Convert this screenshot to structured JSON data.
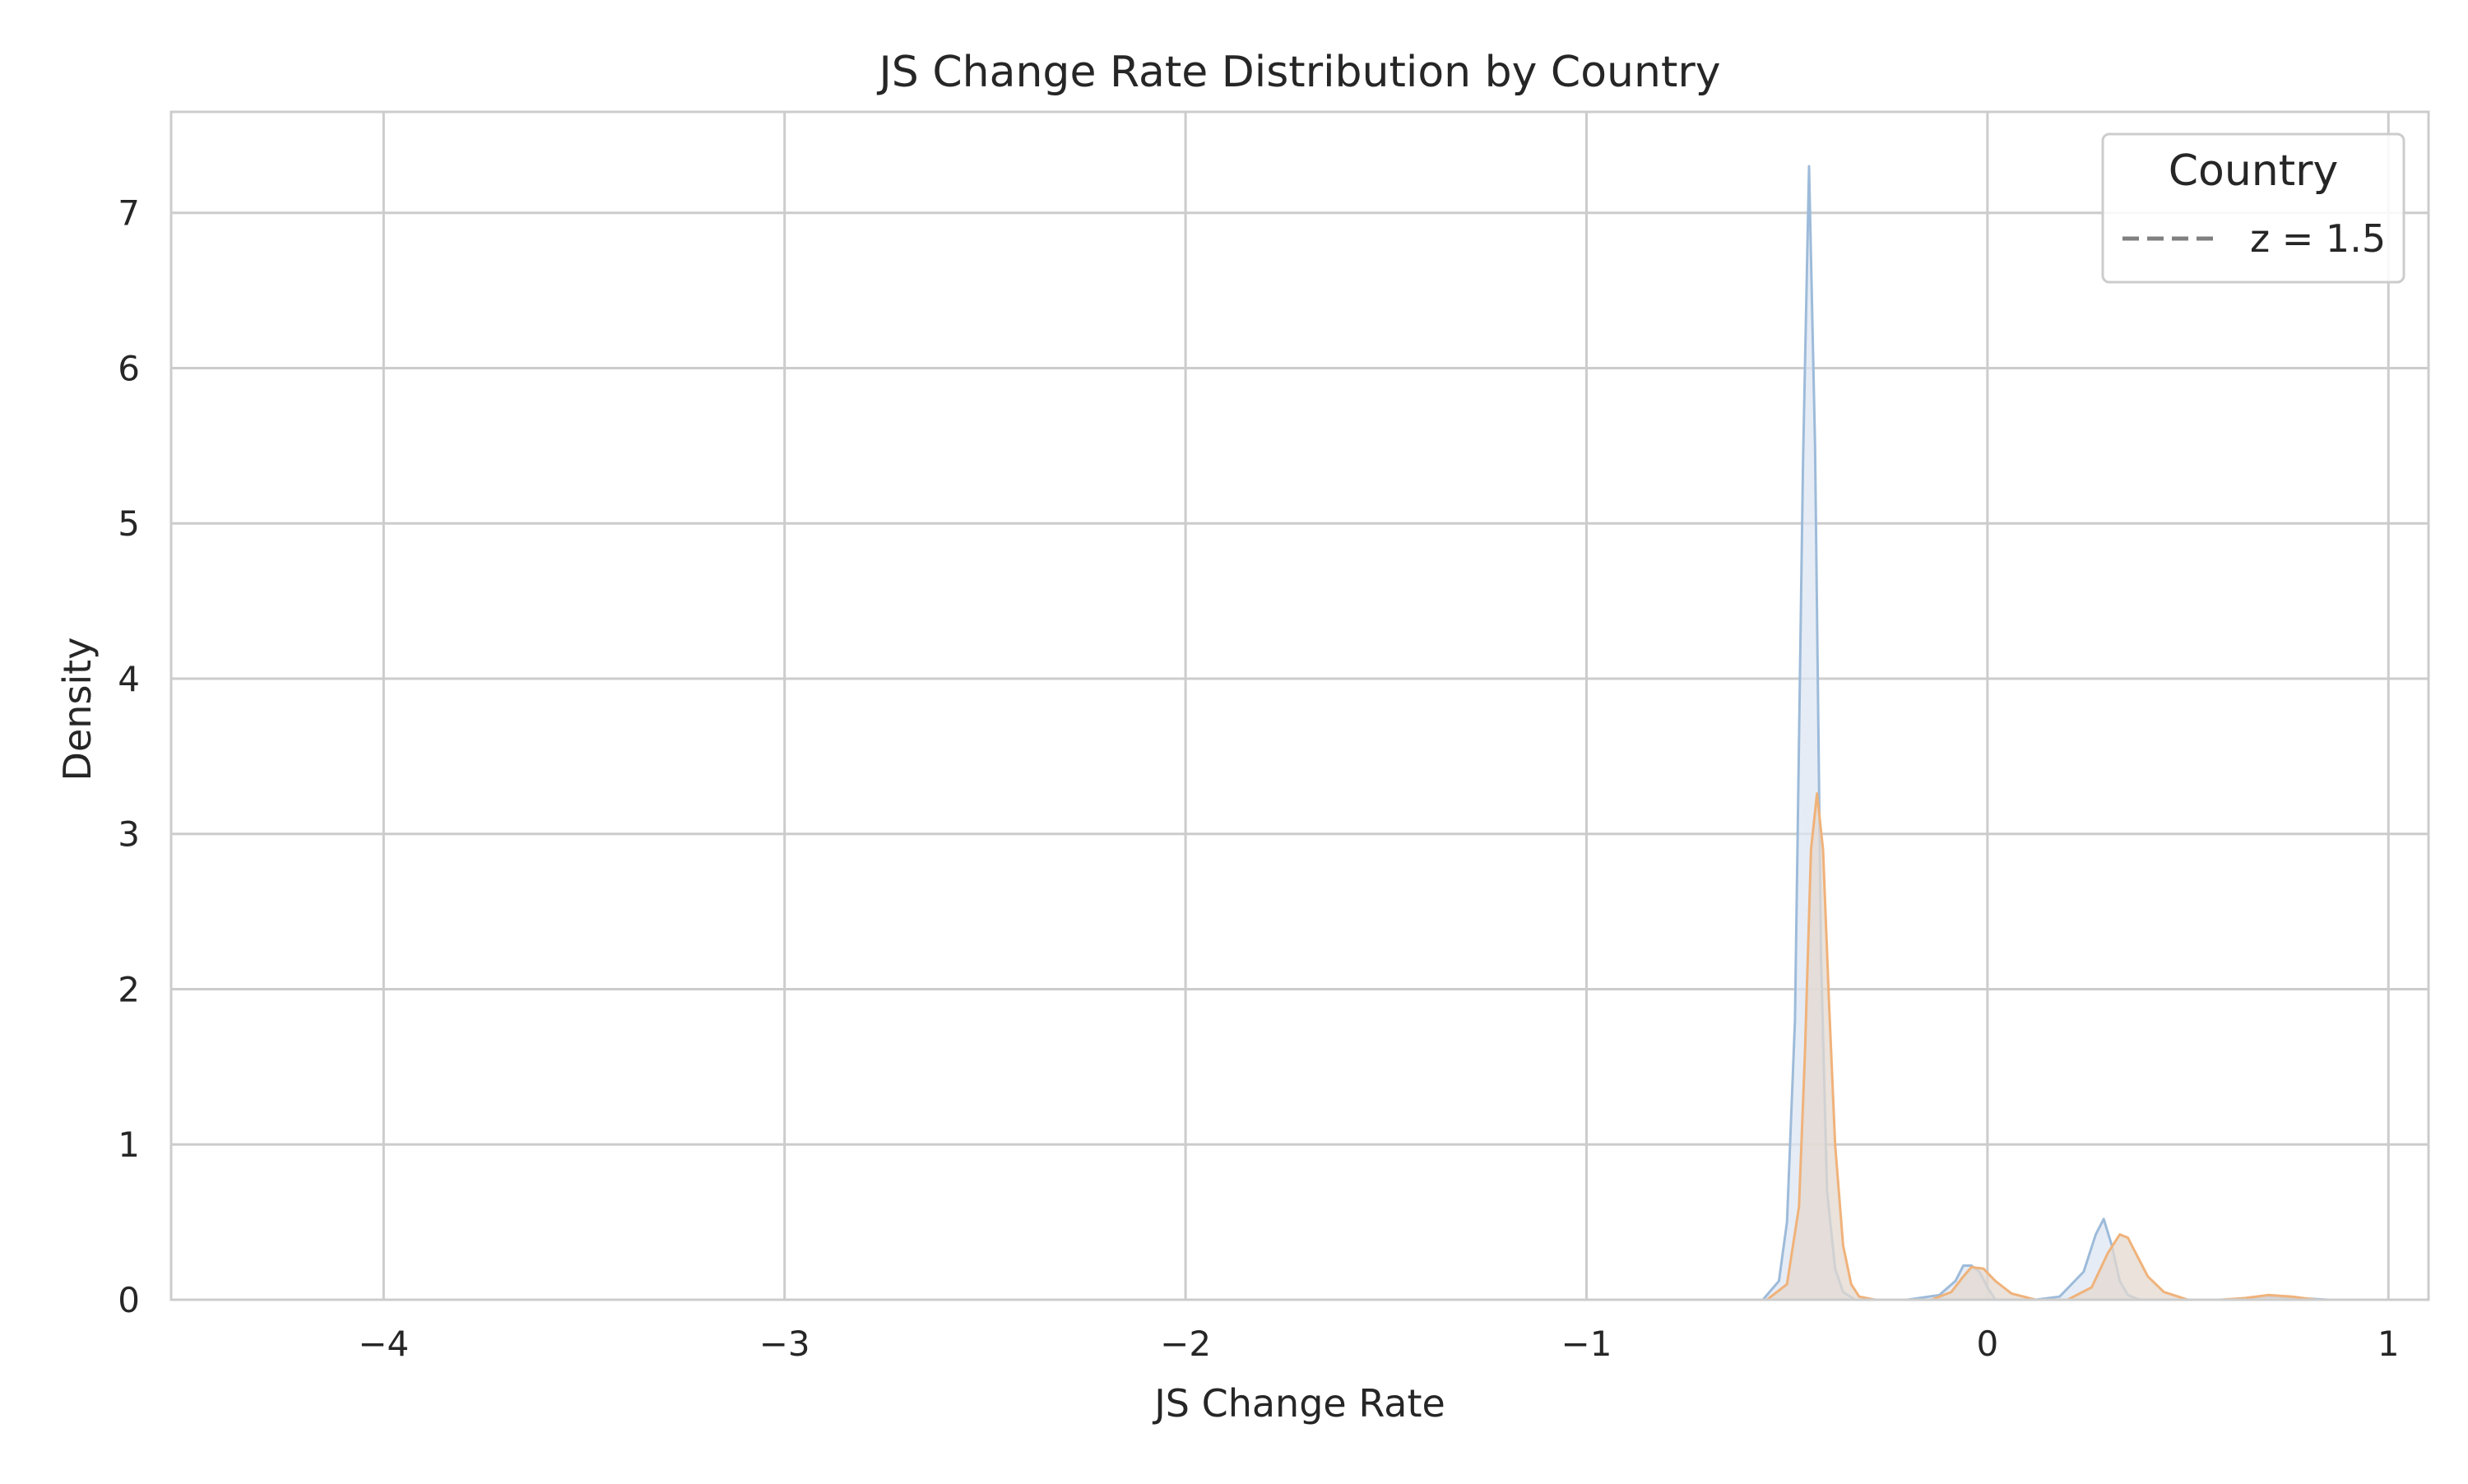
{
  "chart_data": {
    "type": "area",
    "title": "JS Change Rate Distribution by Country",
    "xlabel": "JS Change Rate",
    "ylabel": "Density",
    "xlim": [
      -4.53,
      1.1
    ],
    "ylim": [
      0,
      7.65
    ],
    "xticks": [
      -4,
      -3,
      -2,
      -1,
      0,
      1
    ],
    "xtick_labels": [
      "−4",
      "−3",
      "−2",
      "−1",
      "0",
      "1"
    ],
    "yticks": [
      0,
      1,
      2,
      3,
      4,
      5,
      6,
      7
    ],
    "ytick_labels": [
      "0",
      "1",
      "2",
      "3",
      "4",
      "5",
      "6",
      "7"
    ],
    "grid": true,
    "legend": {
      "title": "Country",
      "position": "top-right",
      "entries": [
        {
          "label": "z = 1.5",
          "style": "dashed",
          "color": "#808080"
        }
      ]
    },
    "series": [
      {
        "name": "series-1",
        "color": "#9dbbda",
        "fill": "#dde6f1",
        "x": [
          -0.56,
          -0.52,
          -0.5,
          -0.48,
          -0.46,
          -0.445,
          -0.43,
          -0.415,
          -0.4,
          -0.38,
          -0.36,
          -0.33,
          -0.2,
          -0.12,
          -0.08,
          -0.06,
          -0.04,
          -0.02,
          0.0,
          0.02,
          0.12,
          0.18,
          0.24,
          0.27,
          0.29,
          0.31,
          0.33,
          0.35,
          0.38,
          0.42,
          0.6,
          0.68,
          0.72,
          0.78,
          0.85
        ],
        "y": [
          0,
          0.12,
          0.5,
          1.8,
          5.4,
          7.3,
          5.5,
          2.2,
          0.7,
          0.2,
          0.05,
          0.0,
          0.0,
          0.03,
          0.12,
          0.22,
          0.22,
          0.18,
          0.08,
          0.0,
          0.0,
          0.02,
          0.18,
          0.42,
          0.52,
          0.35,
          0.12,
          0.03,
          0.0,
          0.0,
          0.0,
          0.02,
          0.02,
          0.01,
          0.0
        ]
      },
      {
        "name": "series-2",
        "color": "#f0b27a",
        "fill": "#e3d8cf",
        "x": [
          -0.55,
          -0.5,
          -0.47,
          -0.455,
          -0.44,
          -0.425,
          -0.41,
          -0.395,
          -0.38,
          -0.36,
          -0.34,
          -0.32,
          -0.28,
          -0.14,
          -0.09,
          -0.06,
          -0.04,
          -0.01,
          0.02,
          0.06,
          0.12,
          0.2,
          0.26,
          0.3,
          0.33,
          0.35,
          0.37,
          0.4,
          0.44,
          0.5,
          0.58,
          0.64,
          0.7,
          0.76,
          0.82
        ],
        "y": [
          0,
          0.1,
          0.6,
          1.6,
          2.9,
          3.26,
          2.9,
          1.9,
          1.0,
          0.35,
          0.1,
          0.02,
          0.0,
          0.0,
          0.05,
          0.15,
          0.21,
          0.2,
          0.12,
          0.04,
          0.0,
          0.0,
          0.08,
          0.3,
          0.42,
          0.4,
          0.3,
          0.15,
          0.05,
          0.0,
          0.0,
          0.01,
          0.03,
          0.02,
          0.0
        ]
      }
    ]
  }
}
